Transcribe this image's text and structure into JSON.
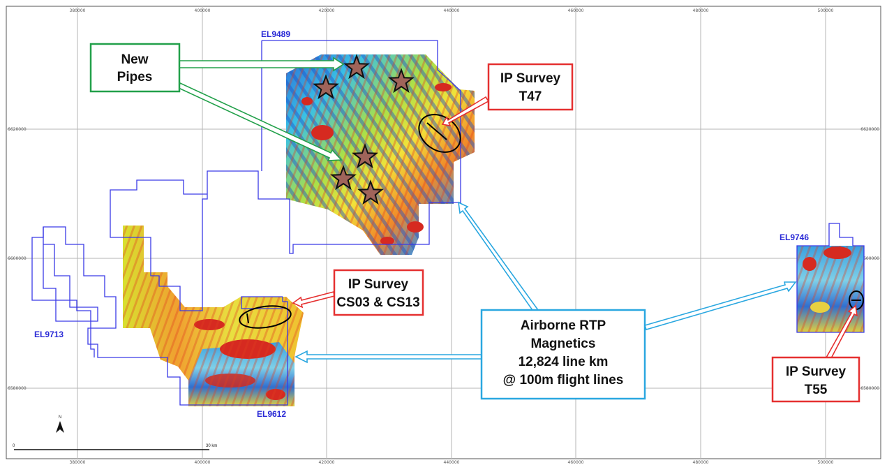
{
  "map": {
    "easting_ticks": [
      "380000",
      "400000",
      "420000",
      "440000",
      "460000",
      "480000",
      "500000"
    ],
    "northing_ticks": [
      "6620000",
      "6600000",
      "6580000"
    ],
    "tenements": {
      "el9489": "EL9489",
      "el9612": "EL9612",
      "el9713": "EL9713",
      "el9746": "EL9746"
    },
    "callouts": {
      "new_pipes": [
        "New",
        "Pipes"
      ],
      "ip_t47": [
        "IP Survey",
        "T47"
      ],
      "ip_cs": [
        "IP Survey",
        "CS03 & CS13"
      ],
      "ip_t55": [
        "IP Survey",
        "T55"
      ],
      "airborne": [
        "Airborne RTP",
        "Magnetics",
        "12,824 line km",
        "@ 100m flight lines"
      ]
    },
    "north_label": "N",
    "scale_label_left": "0",
    "scale_label_right": "30 km",
    "colors": {
      "tenement_outline": "#3a3ae6",
      "new_pipes_border": "#22a04a",
      "ip_border": "#e53030",
      "airborne_border": "#2aa7e0",
      "grid": "#b5b5b5"
    }
  }
}
